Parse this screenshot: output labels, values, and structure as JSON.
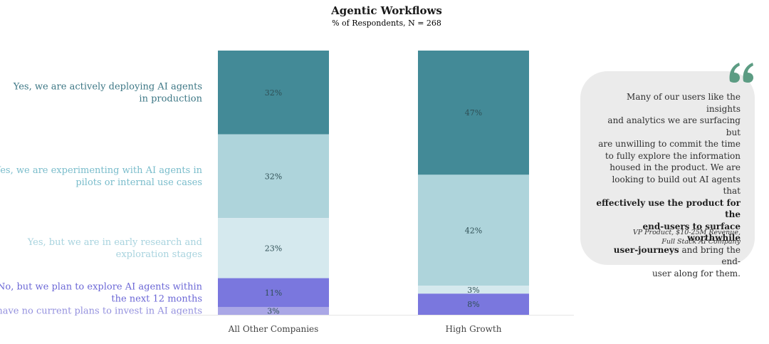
{
  "chart_data": {
    "type": "bar",
    "stacked": true,
    "title": "Agentic Workflows",
    "subtitle": "% of Respondents, N = 268",
    "categories": [
      "All Other Companies",
      "High Growth"
    ],
    "ylim": [
      0,
      100
    ],
    "series": [
      {
        "name": "Yes, we are actively deploying AI agents in production",
        "label_lines": [
          "Yes, we are actively deploying AI agents",
          "in production"
        ],
        "values": [
          32,
          47
        ],
        "labels": [
          "32%",
          "47%"
        ],
        "color": "#438a97",
        "text_color": "#3d7785"
      },
      {
        "name": "Yes, we are experimenting with AI agents in pilots or internal use cases",
        "label_lines": [
          "Yes, we are experimenting with AI agents in",
          "pilots or internal use cases"
        ],
        "values": [
          32,
          42
        ],
        "labels": [
          "32%",
          "42%"
        ],
        "color": "#aed4db",
        "text_color": "#79bccb"
      },
      {
        "name": "Yes, but we are in early research and exploration stages",
        "label_lines": [
          "Yes, but we are in early research and",
          "exploration stages"
        ],
        "values": [
          23,
          3
        ],
        "labels": [
          "23%",
          "3%"
        ],
        "color": "#d5e9ee",
        "text_color": "#a8d3de"
      },
      {
        "name": "No, but we plan to explore AI agents within the next 12 months",
        "label_lines": [
          "No, but we plan to explore AI agents within",
          "the next 12 months"
        ],
        "values": [
          11,
          8
        ],
        "labels": [
          "11%",
          "8%"
        ],
        "color": "#7a77de",
        "text_color": "#6b67d6"
      },
      {
        "name": "No, and we have no current plans to invest in AI agents",
        "label_lines": [
          "No, and we have no current plans to invest in AI agents"
        ],
        "values": [
          3,
          0
        ],
        "labels": [
          "3%",
          ""
        ],
        "color": "#aaa7e6",
        "text_color": "#9491de"
      }
    ],
    "colors": {
      "bar_label": "#2f4f55",
      "axis": "#e6e6e6",
      "axis_label": "#444444",
      "title": "#1a1a1a"
    }
  },
  "quote": {
    "lines": [
      {
        "text": "Many of our users like the insights"
      },
      {
        "text": "and analytics we are surfacing but"
      },
      {
        "text": "are unwilling to commit the time"
      },
      {
        "text": "to fully explore the information"
      },
      {
        "text": "housed in the product. We are"
      },
      {
        "text": "looking to build out AI agents that"
      },
      {
        "text": "effectively use the product for the",
        "bold": true
      },
      {
        "text": "end-users to surface worthwhile",
        "bold": true
      },
      {
        "text": "user-journeys",
        "bold": true,
        "suffix": " and bring the end-"
      },
      {
        "text": "user along for them."
      }
    ],
    "attribution_lines": [
      "VP Product, $10-25M Revenue,",
      "Full Stack AI Company"
    ],
    "mark_color": "#5c9c83",
    "mark_icon": "quote-mark-icon"
  }
}
